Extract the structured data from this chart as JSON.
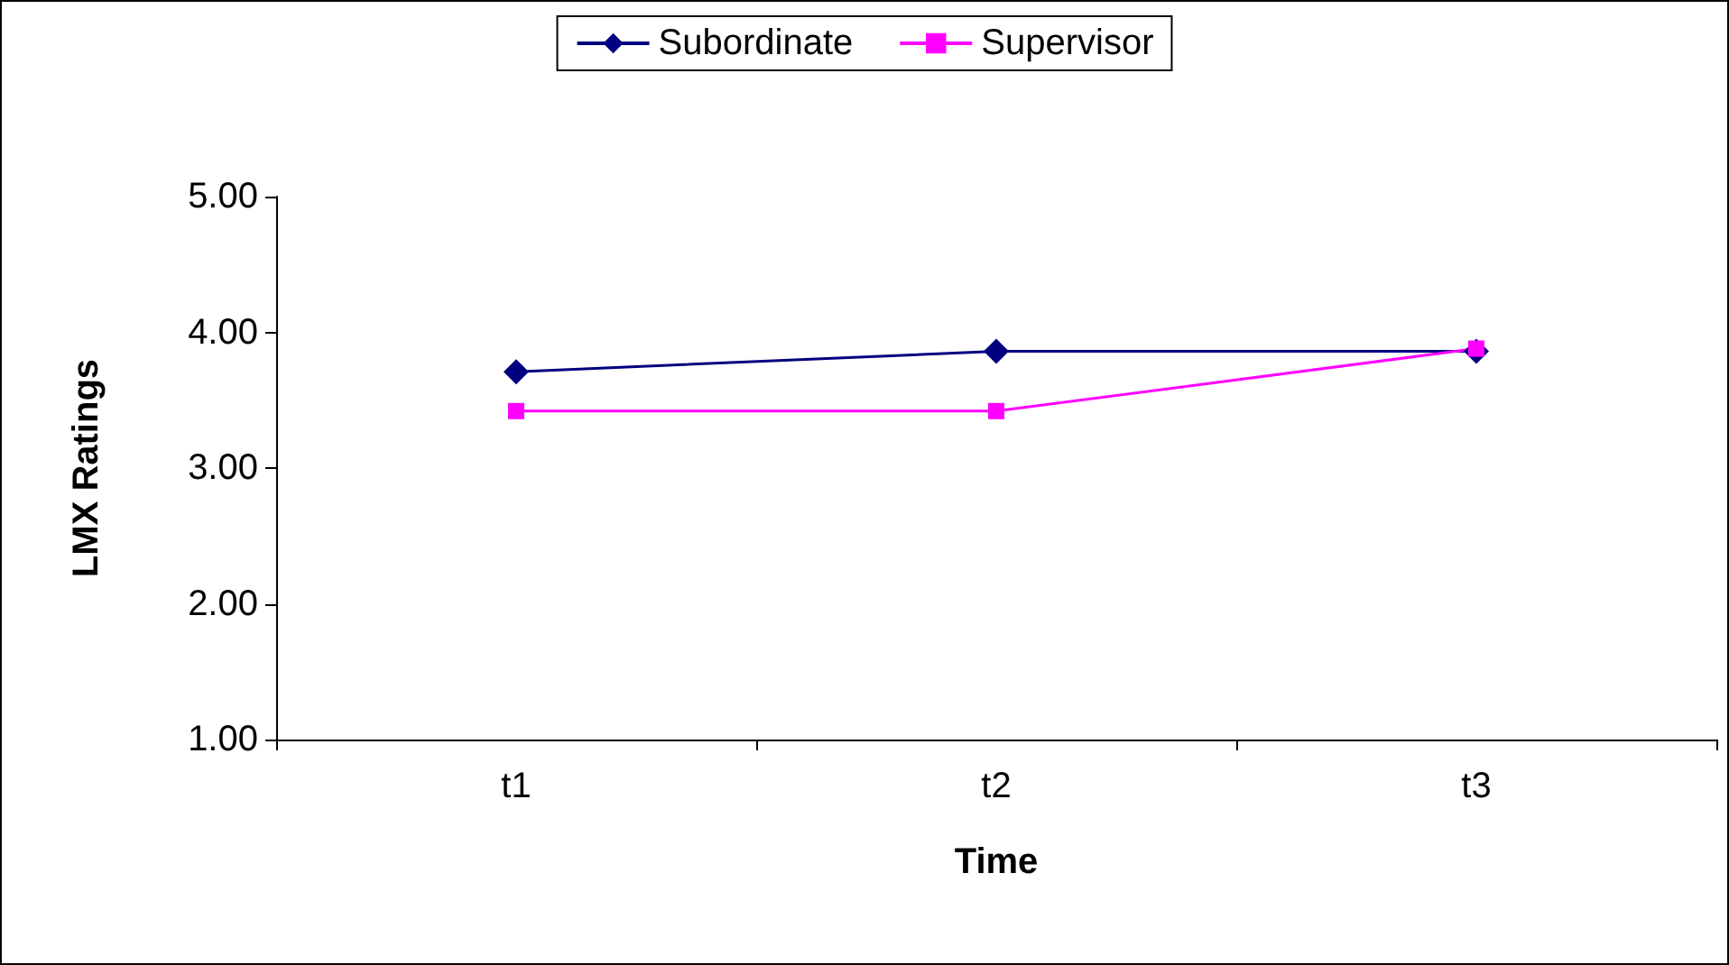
{
  "chart_data": {
    "type": "line",
    "xlabel": "Time",
    "ylabel": "LMX Ratings",
    "categories": [
      "t1",
      "t2",
      "t3"
    ],
    "series": [
      {
        "name": "Subordinate",
        "color": "#000080",
        "marker": "diamond",
        "values": [
          3.71,
          3.86,
          3.86
        ]
      },
      {
        "name": "Supervisor",
        "color": "#ff00ff",
        "marker": "square",
        "values": [
          3.42,
          3.42,
          3.88
        ]
      }
    ],
    "ylim": [
      1,
      5
    ],
    "yticks": [
      {
        "value": 1,
        "label": "1.00"
      },
      {
        "value": 2,
        "label": "2.00"
      },
      {
        "value": 3,
        "label": "3.00"
      },
      {
        "value": 4,
        "label": "4.00"
      },
      {
        "value": 5,
        "label": "5.00"
      }
    ],
    "grid": false,
    "legend": "top"
  }
}
